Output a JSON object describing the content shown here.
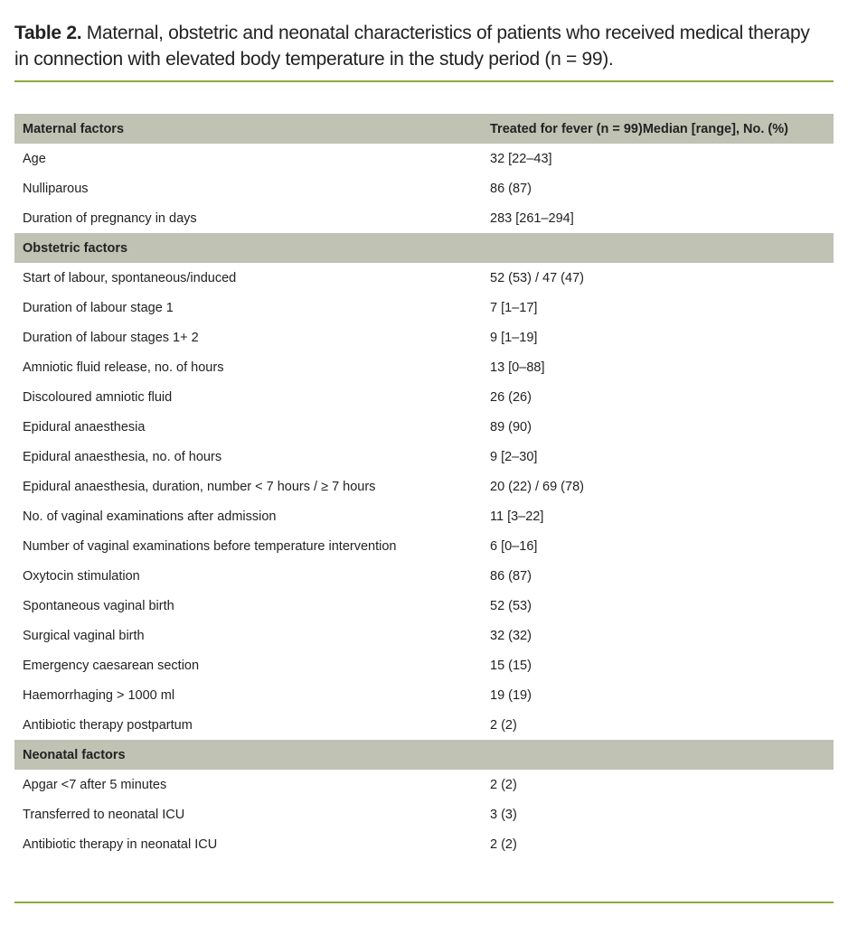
{
  "title": {
    "label": "Table 2.",
    "text": " Maternal, obstetric and neonatal characteristics of patients who received medical therapy in connection with elevated body temperature in the study period (n = 99)."
  },
  "sections": [
    {
      "header": "Maternal factors",
      "header_value": "Treated for fever (n = 99)Median [range], No. (%)",
      "rows": [
        [
          "Age",
          "32 [22–43]"
        ],
        [
          "Nulliparous",
          "86 (87)"
        ],
        [
          "Duration of pregnancy in days",
          "283 [261–294]"
        ]
      ]
    },
    {
      "header": "Obstetric factors",
      "header_value": "",
      "rows": [
        [
          "Start of labour, spontaneous/induced",
          "52 (53) / 47 (47)"
        ],
        [
          "Duration of labour stage 1",
          "7 [1–17]"
        ],
        [
          "Duration of labour stages 1+ 2",
          "9 [1–19]"
        ],
        [
          "Amniotic fluid release, no. of hours",
          "13 [0–88]"
        ],
        [
          "Discoloured amniotic fluid",
          "26 (26)"
        ],
        [
          "Epidural anaesthesia",
          "89 (90)"
        ],
        [
          "Epidural anaesthesia, no. of hours",
          "9 [2–30]"
        ],
        [
          "Epidural anaesthesia, duration, number < 7 hours / ≥ 7 hours",
          "20 (22) / 69 (78)"
        ],
        [
          "No. of vaginal examinations after admission",
          "11 [3–22]"
        ],
        [
          "Number of vaginal examinations before temperature intervention",
          "6 [0–16]"
        ],
        [
          "Oxytocin stimulation",
          "86 (87)"
        ],
        [
          "Spontaneous vaginal birth",
          "52 (53)"
        ],
        [
          "Surgical vaginal birth",
          "32 (32)"
        ],
        [
          "Emergency caesarean section",
          "15 (15)"
        ],
        [
          "Haemorrhaging > 1000 ml",
          "19 (19)"
        ],
        [
          "Antibiotic therapy postpartum",
          "2 (2)"
        ]
      ]
    },
    {
      "header": "Neonatal factors",
      "header_value": "",
      "rows": [
        [
          "Apgar <7 after 5 minutes",
          "2 (2)"
        ],
        [
          "Transferred to neonatal ICU",
          "3 (3)"
        ],
        [
          "Antibiotic therapy in neonatal ICU",
          "2 (2)"
        ]
      ]
    }
  ]
}
